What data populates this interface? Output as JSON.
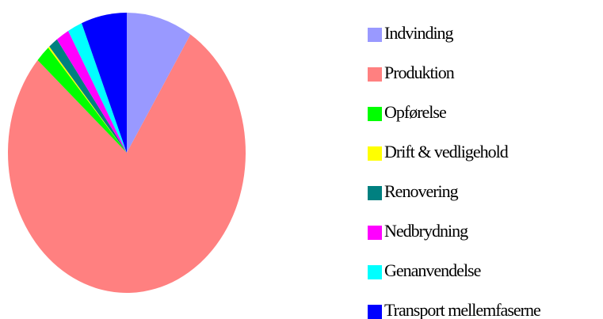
{
  "chart_data": {
    "type": "pie",
    "categories": [
      "Indvinding",
      "Produktion",
      "Opførelse",
      "Drift & vedligehold",
      "Renovering",
      "Nedbrydning",
      "Genanvendelse",
      "Transport mellemfaserne"
    ],
    "values": [
      9,
      77.5,
      2,
      0.2,
      1.3,
      1.8,
      2,
      6.2
    ],
    "colors": [
      "#9999ff",
      "#ff8080",
      "#00ff00",
      "#ffff00",
      "#008080",
      "#ff00ff",
      "#00ffff",
      "#0000ff"
    ],
    "legend": "right"
  }
}
